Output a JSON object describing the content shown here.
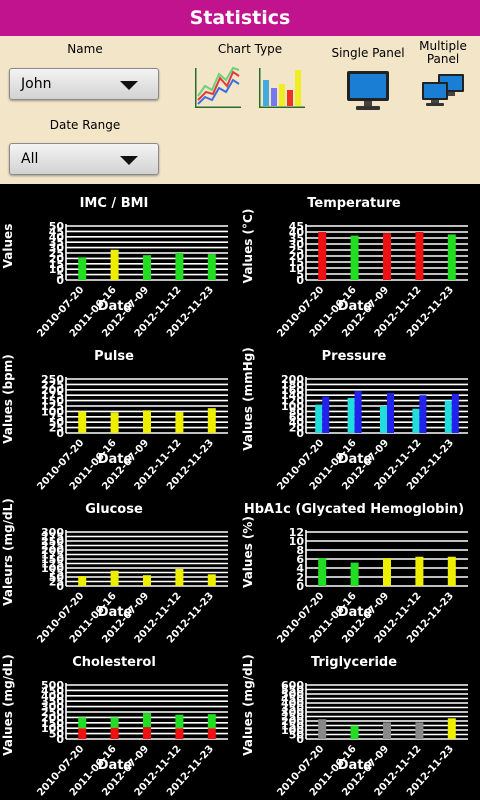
{
  "header": {
    "title": "Statistics"
  },
  "controls": {
    "name_label": "Name",
    "name_value": "John",
    "date_range_label": "Date Range",
    "date_range_value": "All",
    "chart_type_label": "Chart Type",
    "single_panel_label": "Single Panel",
    "multiple_panel_label": "Multiple Panel",
    "chart_type_icons": [
      "line-chart-icon",
      "bar-chart-icon"
    ],
    "panel_icons": [
      "monitor-icon",
      "multiple-monitors-icon"
    ]
  },
  "colors": {
    "title_bar": "#c2138f",
    "controls_bg": "#f3e5c8",
    "green": "#22dd22",
    "yellow": "#eeee00",
    "red": "#ee1111",
    "cyan": "#22dddd",
    "blue": "#2222ee",
    "gray": "#888888"
  },
  "chart_data": [
    {
      "type": "bar",
      "title": "IMC / BMI",
      "xlabel": "Date",
      "ylabel": "Values",
      "ylim": [
        0,
        50
      ],
      "yticks": [
        0,
        5,
        10,
        15,
        20,
        25,
        30,
        35,
        40,
        45,
        50
      ],
      "categories": [
        "2010-07-20",
        "2011-06-16",
        "2012-07-09",
        "2012-11-12",
        "2012-11-23"
      ],
      "series": [
        {
          "values": [
            21,
            28,
            23,
            25,
            24
          ],
          "colors": [
            "#22dd22",
            "#eeee00",
            "#22dd22",
            "#22dd22",
            "#22dd22"
          ]
        }
      ]
    },
    {
      "type": "bar",
      "title": "Temperature",
      "xlabel": "Date",
      "ylabel": "Values (°C)",
      "ylim": [
        0,
        45
      ],
      "yticks": [
        0,
        5,
        10,
        15,
        20,
        25,
        30,
        35,
        40,
        45
      ],
      "categories": [
        "2010-07-20",
        "2011-06-16",
        "2012-07-09",
        "2012-11-12",
        "2012-11-23"
      ],
      "series": [
        {
          "values": [
            40,
            37,
            39,
            40,
            38
          ],
          "colors": [
            "#ee1111",
            "#22dd22",
            "#ee1111",
            "#ee1111",
            "#22dd22"
          ]
        }
      ]
    },
    {
      "type": "bar",
      "title": "Pulse",
      "xlabel": "Date",
      "ylabel": "Values (bpm)",
      "ylim": [
        0,
        250
      ],
      "yticks": [
        0,
        25,
        50,
        75,
        100,
        125,
        150,
        175,
        200,
        225,
        250
      ],
      "categories": [
        "2010-07-20",
        "2011-06-16",
        "2012-07-09",
        "2012-11-12",
        "2012-11-23"
      ],
      "series": [
        {
          "values": [
            100,
            95,
            105,
            97,
            115
          ],
          "colors": [
            "#eeee00",
            "#eeee00",
            "#eeee00",
            "#eeee00",
            "#eeee00"
          ]
        }
      ]
    },
    {
      "type": "bar",
      "title": "Pressure",
      "xlabel": "Date",
      "ylabel": "Values (mmHg)",
      "ylim": [
        0,
        200
      ],
      "yticks": [
        0,
        20,
        40,
        60,
        80,
        100,
        120,
        140,
        160,
        180,
        200
      ],
      "categories": [
        "2010-07-20",
        "2011-06-16",
        "2012-07-09",
        "2012-11-12",
        "2012-11-23"
      ],
      "series": [
        {
          "values": [
            105,
            130,
            100,
            90,
            120
          ],
          "colors": [
            "#22dddd",
            "#22dddd",
            "#22dddd",
            "#22dddd",
            "#22dddd"
          ]
        },
        {
          "values": [
            135,
            155,
            148,
            140,
            145
          ],
          "colors": [
            "#2222ee",
            "#2222ee",
            "#2222ee",
            "#2222ee",
            "#2222ee"
          ]
        }
      ]
    },
    {
      "type": "bar",
      "title": "Glucose",
      "xlabel": "Date",
      "ylabel": "Valeurs (mg/dL)",
      "ylim": [
        0,
        300
      ],
      "yticks": [
        0,
        25,
        50,
        75,
        100,
        125,
        150,
        175,
        200,
        225,
        250,
        275,
        300
      ],
      "categories": [
        "2010-07-20",
        "2011-06-16",
        "2012-07-09",
        "2012-11-12",
        "2012-11-23"
      ],
      "series": [
        {
          "values": [
            55,
            85,
            60,
            95,
            65
          ],
          "colors": [
            "#eeee00",
            "#eeee00",
            "#eeee00",
            "#eeee00",
            "#eeee00"
          ]
        }
      ]
    },
    {
      "type": "bar",
      "title": "HbA1c (Glycated Hemoglobin)",
      "xlabel": "Date",
      "ylabel": "Values (%)",
      "ylim": [
        0,
        12
      ],
      "yticks": [
        0,
        2,
        4,
        6,
        8,
        10,
        12
      ],
      "categories": [
        "2010-07-20",
        "2011-06-16",
        "2012-07-09",
        "2012-11-12",
        "2012-11-23"
      ],
      "series": [
        {
          "values": [
            6.2,
            5.2,
            6.2,
            6.5,
            6.5
          ],
          "colors": [
            "#22dd22",
            "#22dd22",
            "#eeee00",
            "#eeee00",
            "#eeee00"
          ]
        }
      ]
    },
    {
      "type": "bar",
      "title": "Cholesterol",
      "xlabel": "Date",
      "ylabel": "Values (mg/dL)",
      "ylim": [
        0,
        500
      ],
      "yticks": [
        0,
        50,
        100,
        150,
        200,
        250,
        300,
        350,
        400,
        450,
        500
      ],
      "categories": [
        "2010-07-20",
        "2011-06-16",
        "2012-07-09",
        "2012-11-12",
        "2012-11-23"
      ],
      "stacked": true,
      "series": [
        {
          "values": [
            100,
            105,
            110,
            100,
            100
          ],
          "colors": [
            "#ee1111",
            "#ee1111",
            "#ee1111",
            "#ee1111",
            "#ee1111"
          ]
        },
        {
          "values": [
            100,
            95,
            130,
            125,
            130
          ],
          "colors": [
            "#22dd22",
            "#22dd22",
            "#22dd22",
            "#22dd22",
            "#22dd22"
          ]
        }
      ]
    },
    {
      "type": "bar",
      "title": "Triglyceride",
      "xlabel": "Date",
      "ylabel": "Values (mg/dL)",
      "ylim": [
        0,
        600
      ],
      "yticks": [
        0,
        50,
        100,
        150,
        200,
        250,
        300,
        350,
        400,
        450,
        500,
        550,
        600
      ],
      "categories": [
        "2010-07-20",
        "2011-06-16",
        "2012-07-09",
        "2012-11-12",
        "2012-11-23"
      ],
      "series": [
        {
          "values": [
            220,
            150,
            185,
            185,
            230
          ],
          "colors": [
            "#888888",
            "#22dd22",
            "#888888",
            "#888888",
            "#eeee00"
          ]
        }
      ]
    }
  ]
}
